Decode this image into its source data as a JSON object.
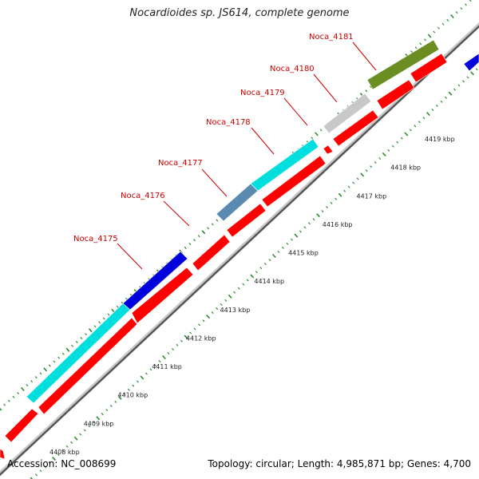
{
  "title": "Nocardioides sp. JS614, complete genome",
  "footer": {
    "accession": "Accession: NC_008699",
    "summary": "Topology: circular; Length: 4,985,871 bp; Genes: 4,700"
  },
  "colors": {
    "cds": "#ff0000",
    "cyan_feature": "#00dede",
    "blue_feature": "#0000dd",
    "steel_feature": "#5a8ab0",
    "grey_feature": "#c8c8c8",
    "olive_feature": "#6b8e23",
    "backbone": "#a0a0a0",
    "tick": "#2e8b2e",
    "label": "#cc0000"
  },
  "scale": {
    "unit": "kbp",
    "ticks": [
      {
        "kbp": 4408,
        "label": "4408 kbp"
      },
      {
        "kbp": 4409,
        "label": "4409 kbp"
      },
      {
        "kbp": 4410,
        "label": "4410 kbp"
      },
      {
        "kbp": 4411,
        "label": "4411 kbp"
      },
      {
        "kbp": 4412,
        "label": "4412 kbp"
      },
      {
        "kbp": 4413,
        "label": "4413 kbp"
      },
      {
        "kbp": 4414,
        "label": "4414 kbp"
      },
      {
        "kbp": 4415,
        "label": "4415 kbp"
      },
      {
        "kbp": 4416,
        "label": "4416 kbp"
      },
      {
        "kbp": 4417,
        "label": "4417 kbp"
      },
      {
        "kbp": 4418,
        "label": "4418 kbp"
      },
      {
        "kbp": 4419,
        "label": "4419 kbp"
      }
    ]
  },
  "genes": [
    {
      "name": "Noca_4175"
    },
    {
      "name": "Noca_4176"
    },
    {
      "name": "Noca_4177"
    },
    {
      "name": "Noca_4178"
    },
    {
      "name": "Noca_4179"
    },
    {
      "name": "Noca_4180"
    },
    {
      "name": "Noca_4181"
    }
  ]
}
